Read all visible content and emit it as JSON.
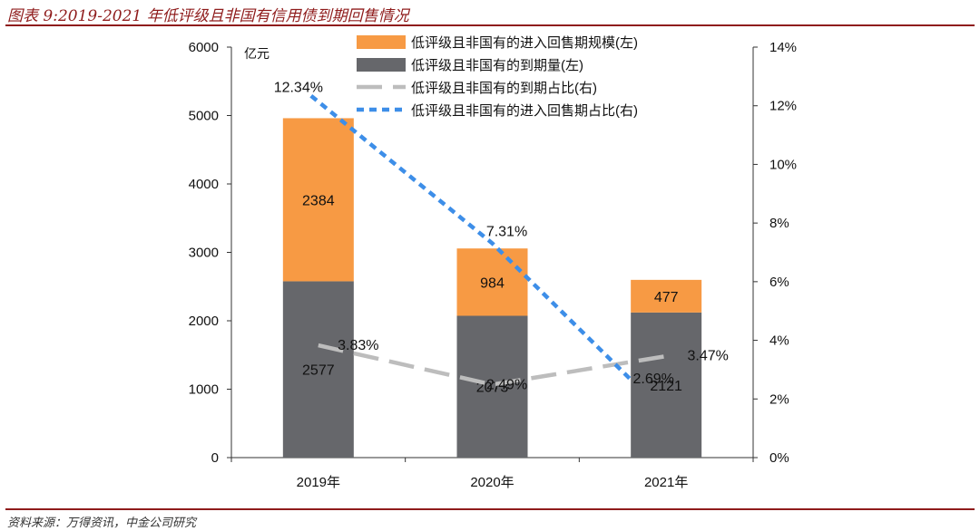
{
  "header": {
    "title": "图表 9:2019-2021 年低评级且非国有信用债到期回售情况"
  },
  "footer": {
    "source": "资料来源：万得资讯，中金公司研究"
  },
  "chart_data": {
    "type": "bar",
    "stacked": true,
    "categories": [
      "2019年",
      "2020年",
      "2021年"
    ],
    "left_axis": {
      "unit_label": "亿元",
      "min": 0,
      "max": 6000,
      "ticks": [
        "0",
        "1000",
        "2000",
        "3000",
        "4000",
        "5000",
        "6000"
      ]
    },
    "right_axis": {
      "min": 0,
      "max": 14,
      "ticks": [
        "0%",
        "2%",
        "4%",
        "6%",
        "8%",
        "10%",
        "12%",
        "14%"
      ]
    },
    "series": [
      {
        "name": "低评级且非国有的到期量(左)",
        "kind": "bar",
        "axis": "left",
        "color": "#66676b",
        "values": [
          2577,
          2073,
          2121
        ],
        "labels": [
          "2577",
          "2073",
          "2121"
        ]
      },
      {
        "name": "低评级且非国有的进入回售期规模(左)",
        "kind": "bar",
        "axis": "left",
        "color": "#f79a44",
        "values": [
          2384,
          984,
          477
        ],
        "labels": [
          "2384",
          "984",
          "477"
        ]
      },
      {
        "name": "低评级且非国有的到期占比(右)",
        "kind": "line",
        "axis": "right",
        "color": "#bdbdbd",
        "dash": "long",
        "values": [
          3.83,
          2.49,
          3.47
        ],
        "labels": [
          "3.83%",
          "2.49%",
          "3.47%"
        ]
      },
      {
        "name": "低评级且非国有的进入回售期占比(右)",
        "kind": "line",
        "axis": "right",
        "color": "#3d8ee8",
        "dash": "short",
        "values": [
          12.34,
          7.31,
          2.69
        ],
        "labels": [
          "12.34%",
          "7.31%",
          "2.69%"
        ]
      }
    ],
    "legend_order": [
      1,
      0,
      2,
      3
    ],
    "legend_position": "top-center",
    "grid": false
  }
}
